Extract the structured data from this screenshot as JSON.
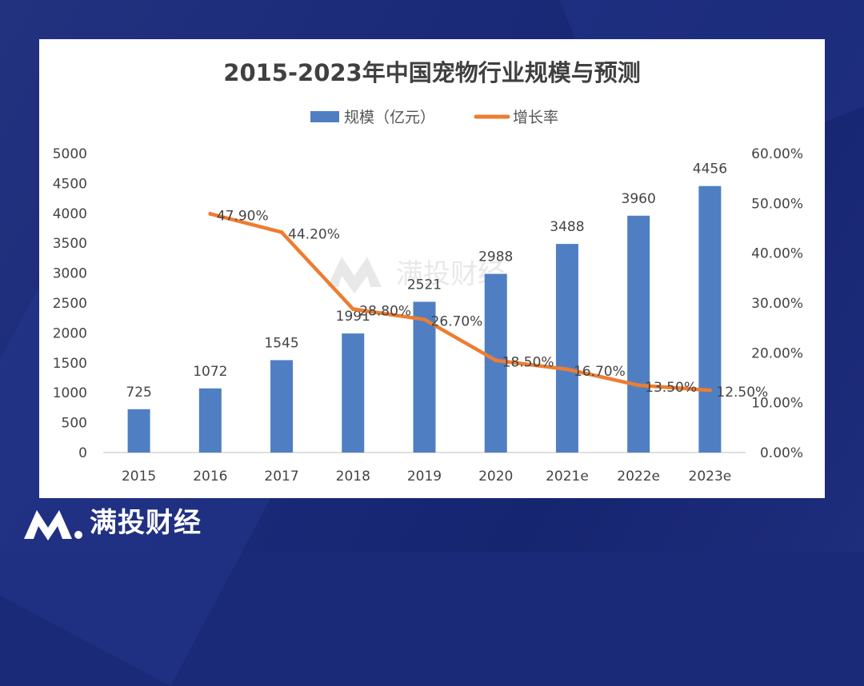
{
  "brand": {
    "name": "满投财经",
    "watermark": "满投财经"
  },
  "colors": {
    "bar": "#4f7fc2",
    "line": "#ed7d31",
    "text": "#444444"
  },
  "chart_data": {
    "type": "bar+line",
    "title": "2015-2023年中国宠物行业规模与预测",
    "categories": [
      "2015",
      "2016",
      "2017",
      "2018",
      "2019",
      "2020",
      "2021e",
      "2022e",
      "2023e"
    ],
    "series": [
      {
        "name": "规模（亿元）",
        "type": "bar",
        "axis": "left",
        "values": [
          725,
          1072,
          1545,
          1991,
          2521,
          2988,
          3488,
          3960,
          4456
        ],
        "labels": [
          "725",
          "1072",
          "1545",
          "1991",
          "2521",
          "2988",
          "3488",
          "3960",
          "4456"
        ]
      },
      {
        "name": "增长率",
        "type": "line",
        "axis": "right",
        "values": [
          null,
          47.9,
          44.2,
          28.8,
          26.7,
          18.5,
          16.7,
          13.5,
          12.5
        ],
        "labels": [
          null,
          "47.90%",
          "44.20%",
          "28.80%",
          "26.70%",
          "18.50%",
          "16.70%",
          "13.50%",
          "12.50%"
        ]
      }
    ],
    "y_left": {
      "min": 0,
      "max": 5000,
      "ticks": [
        "0",
        "500",
        "1000",
        "1500",
        "2000",
        "2500",
        "3000",
        "3500",
        "4000",
        "4500",
        "5000"
      ]
    },
    "y_right": {
      "min": 0,
      "max": 60,
      "ticks": [
        "0.00%",
        "10.00%",
        "20.00%",
        "30.00%",
        "40.00%",
        "50.00%",
        "60.00%"
      ]
    },
    "legend_position": "top-center",
    "grid": false
  }
}
